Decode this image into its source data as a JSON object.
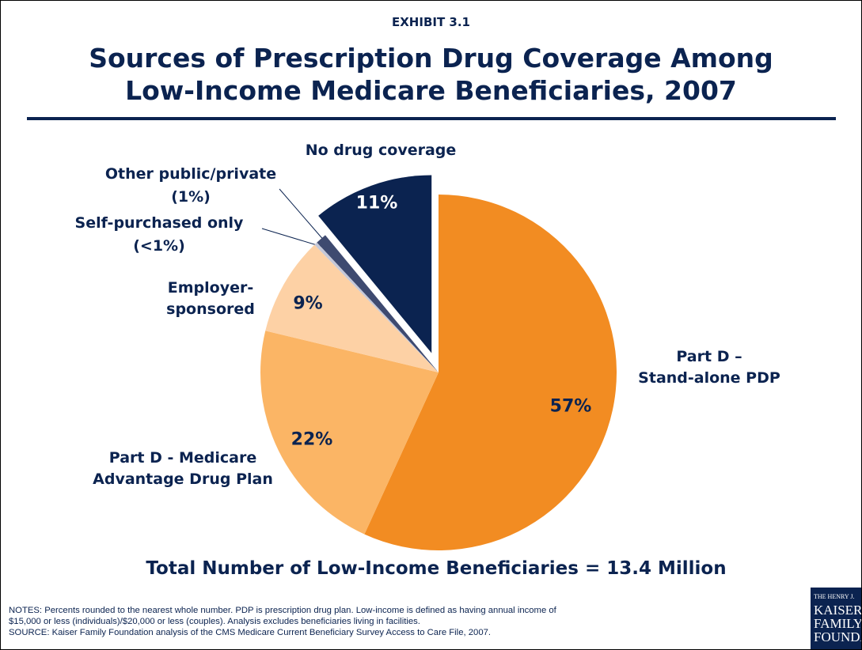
{
  "chart_data": {
    "type": "pie",
    "exhibit": "EXHIBIT 3.1",
    "title": "Sources of Prescription Drug Coverage Among\nLow-Income Medicare Beneficiaries, 2007",
    "subtitle": "Total Number of Low-Income Beneficiaries = 13.4 Million",
    "categories": [
      "Part D –\nStand-alone PDP",
      "Part D - Medicare\nAdvantage Drug Plan",
      "Employer-\nsponsored",
      "Self-purchased only",
      "Other public/private",
      "No drug coverage"
    ],
    "values": [
      57,
      22,
      9,
      0.3,
      1,
      11
    ],
    "value_labels": [
      "57%",
      "22%",
      "9%",
      "(<1%)",
      "(1%)",
      "11%"
    ],
    "colors": [
      "#f28c22",
      "#fbb565",
      "#fdd1a5",
      "#c5c8d8",
      "#3e4a70",
      "#0b2350"
    ],
    "explode": [
      false,
      false,
      false,
      false,
      false,
      true
    ],
    "notes": "NOTES: Percents rounded to the nearest whole number. PDP is prescription drug plan. Low-income is defined as having annual income of\n$15,000 or less (individuals)/$20,000 or less (couples). Analysis excludes beneficiaries living in facilities.\nSOURCE: Kaiser Family Foundation analysis of the CMS Medicare Current Beneficiary Survey Access to Care File, 2007.",
    "logo": "THE HENRY J.\nKAISER\nFAMILY\nFOUNDATION"
  }
}
